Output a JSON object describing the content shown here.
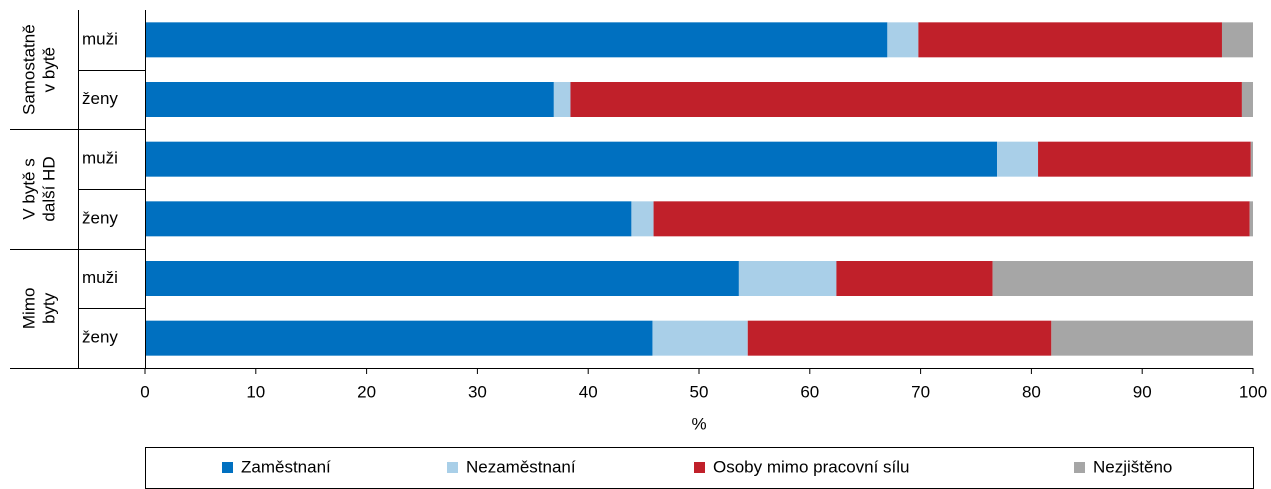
{
  "chart_data": {
    "type": "stacked-barh",
    "groups": [
      {
        "lines": [
          "Samostatně",
          "v bytě"
        ]
      },
      {
        "lines": [
          "V bytě s",
          "další HD"
        ]
      },
      {
        "lines": [
          "Mimo",
          "byty"
        ]
      }
    ],
    "categories": [
      "muži",
      "ženy",
      "muži",
      "ženy",
      "muži",
      "ženy"
    ],
    "series": [
      {
        "name": "Zaměstnaní",
        "color": "#0070c0",
        "values": [
          67.0,
          36.9,
          76.9,
          43.9,
          53.6,
          45.8
        ]
      },
      {
        "name": "Nezaměstnaní",
        "color": "#a9cfe8",
        "values": [
          2.8,
          1.5,
          3.7,
          2.0,
          8.8,
          8.6
        ]
      },
      {
        "name": "Osoby mimo pracovní sílu",
        "color": "#c0202a",
        "values": [
          27.4,
          60.6,
          19.2,
          53.8,
          14.1,
          27.4
        ]
      },
      {
        "name": "Nezjištěno",
        "color": "#a6a6a6",
        "values": [
          2.8,
          1.0,
          0.2,
          0.3,
          23.5,
          18.2
        ]
      }
    ],
    "xlabel": "%",
    "xlim": [
      0,
      100
    ],
    "xticks": [
      0,
      10,
      20,
      30,
      40,
      50,
      60,
      70,
      80,
      90,
      100
    ],
    "legend": "bottom"
  }
}
